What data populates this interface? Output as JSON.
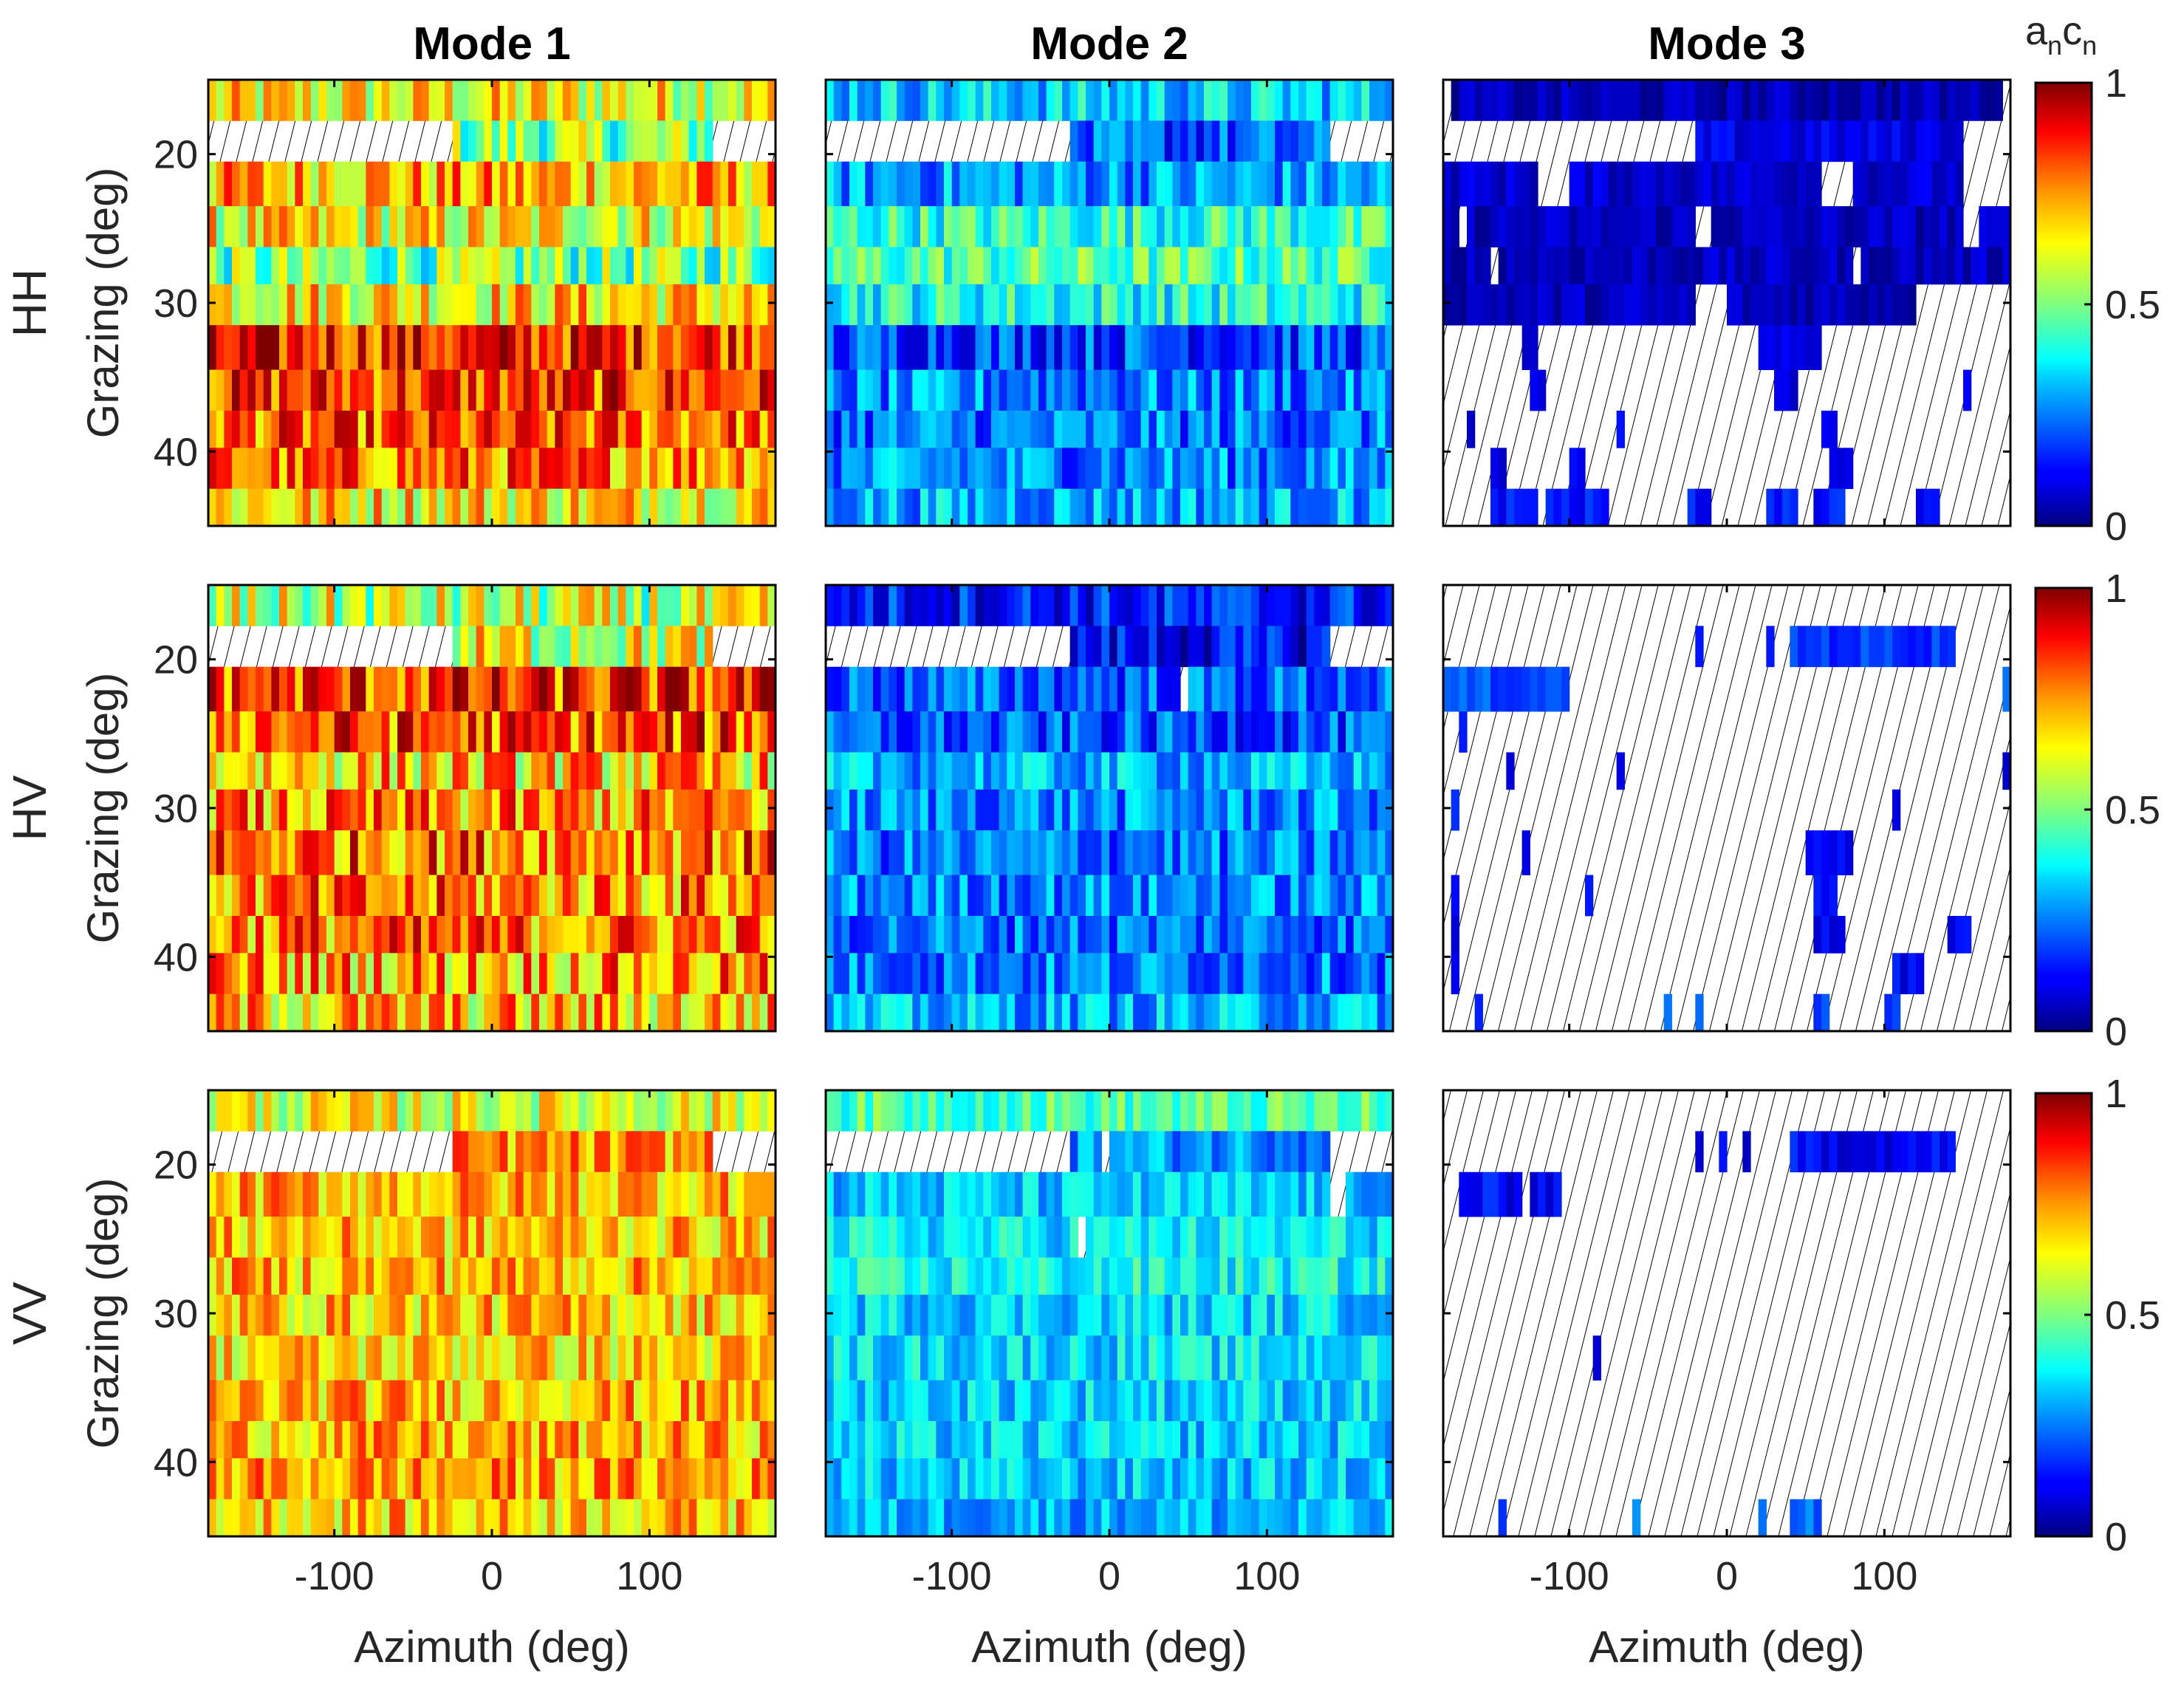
{
  "chart_data": {
    "type": "heatmap",
    "modes": [
      "Mode 1",
      "Mode 2",
      "Mode 3"
    ],
    "polarizations": [
      "HH",
      "HV",
      "VV"
    ],
    "xlabel": "Azimuth (deg)",
    "ylabel": "Grazing (deg)",
    "xlim": [
      -180,
      180
    ],
    "ylim": [
      15,
      45
    ],
    "xticks": [
      -100,
      0,
      100
    ],
    "xtick_labels": [
      "-100",
      "0",
      "100"
    ],
    "yticks": [
      20,
      30,
      40
    ],
    "ytick_labels": [
      "20",
      "30",
      "40"
    ],
    "azimuth_bins": 72,
    "grazing_rows": [
      16.5,
      19.0,
      22.0,
      25.0,
      27.5,
      30.0,
      33.0,
      36.0,
      38.5,
      41.0,
      44.0
    ],
    "missing_value_marker": "hatched",
    "colormap": "jet",
    "colorbar": {
      "title_main": "a",
      "title_sub_a": "n",
      "title_main_b": "c",
      "title_sub_b": "n",
      "ticks": [
        0,
        0.5,
        1
      ],
      "tick_labels": [
        "0",
        "0.5",
        "1"
      ],
      "range": [
        0,
        1
      ]
    },
    "panels": [
      {
        "pol": "HH",
        "mode": "Mode 1",
        "row_means": [
          0.62,
          0.5,
          0.7,
          0.62,
          0.48,
          0.66,
          0.85,
          0.82,
          0.78,
          0.76,
          0.66
        ],
        "row_spread": 0.18,
        "row_missing": [
          [],
          [
            [
              -180,
              -25
            ],
            [
              140,
              180
            ]
          ],
          [],
          [],
          [],
          [],
          [],
          [],
          [],
          [],
          []
        ]
      },
      {
        "pol": "HH",
        "mode": "Mode 2",
        "row_means": [
          0.33,
          0.2,
          0.28,
          0.42,
          0.45,
          0.4,
          0.2,
          0.25,
          0.24,
          0.26,
          0.3
        ],
        "row_spread": 0.13,
        "row_missing": [
          [],
          [
            [
              -180,
              -25
            ],
            [
              140,
              180
            ]
          ],
          [],
          [],
          [],
          [],
          [],
          [],
          [],
          [],
          []
        ]
      },
      {
        "pol": "HH",
        "mode": "Mode 3",
        "row_means": [
          0.05,
          0.1,
          0.08,
          0.06,
          0.06,
          0.06,
          0.08,
          0.1,
          0.1,
          0.12,
          0.14
        ],
        "row_spread": 0.05,
        "row_missing": [
          [
            [
              -180,
              -176
            ],
            [
              175,
              180
            ]
          ],
          [
            [
              -180,
              -22
            ],
            [
              150,
              180
            ]
          ],
          [
            [
              -120,
              -100
            ],
            [
              60,
              80
            ],
            [
              150,
              180
            ]
          ],
          [
            [
              -170,
              -165
            ],
            [
              -20,
              -10
            ],
            [
              150,
              160
            ]
          ],
          [
            [
              -150,
              -145
            ],
            [
              80,
              85
            ]
          ],
          [
            [
              -20,
              0
            ],
            [
              120,
              180
            ]
          ],
          [
            [
              -180,
              -130
            ],
            [
              -120,
              20
            ],
            [
              60,
              180
            ]
          ],
          [
            [
              -180,
              -125
            ],
            [
              -115,
              30
            ],
            [
              45,
              150
            ],
            [
              155,
              180
            ]
          ],
          [
            [
              -180,
              -165
            ],
            [
              -160,
              -70
            ],
            [
              -65,
              60
            ],
            [
              70,
              180
            ]
          ],
          [
            [
              -180,
              -150
            ],
            [
              -140,
              -100
            ],
            [
              -90,
              65
            ],
            [
              80,
              180
            ]
          ],
          [
            [
              -180,
              -150
            ],
            [
              -120,
              -115
            ],
            [
              -75,
              -25
            ],
            [
              -10,
              25
            ],
            [
              45,
              55
            ],
            [
              75,
              120
            ],
            [
              135,
              180
            ]
          ]
        ]
      },
      {
        "pol": "HV",
        "mode": "Mode 1",
        "row_means": [
          0.55,
          0.6,
          0.82,
          0.8,
          0.68,
          0.72,
          0.78,
          0.74,
          0.76,
          0.72,
          0.68
        ],
        "row_spread": 0.2,
        "row_missing": [
          [],
          [
            [
              -180,
              -25
            ],
            [
              140,
              180
            ]
          ],
          [],
          [],
          [],
          [],
          [],
          [],
          [],
          [],
          []
        ]
      },
      {
        "pol": "HV",
        "mode": "Mode 2",
        "row_means": [
          0.15,
          0.12,
          0.22,
          0.2,
          0.3,
          0.26,
          0.24,
          0.26,
          0.24,
          0.25,
          0.3
        ],
        "row_spread": 0.12,
        "row_missing": [
          [],
          [
            [
              -180,
              -25
            ],
            [
              140,
              180
            ]
          ],
          [
            [
              45,
              50
            ]
          ],
          [],
          [],
          [],
          [],
          [],
          [],
          [],
          []
        ]
      },
      {
        "pol": "HV",
        "mode": "Mode 3",
        "row_means": [
          0.1,
          0.18,
          0.2,
          0.12,
          0.12,
          0.14,
          0.14,
          0.12,
          0.12,
          0.12,
          0.2
        ],
        "row_spread": 0.05,
        "row_missing": [
          [
            [
              -180,
              180
            ]
          ],
          [
            [
              -180,
              -20
            ],
            [
              -15,
              25
            ],
            [
              30,
              40
            ],
            [
              145,
              180
            ]
          ],
          [
            [
              -100,
              175
            ]
          ],
          [
            [
              -180,
              -170
            ],
            [
              -165,
              180
            ]
          ],
          [
            [
              -180,
              -140
            ],
            [
              -135,
              -70
            ],
            [
              -65,
              175
            ]
          ],
          [
            [
              -180,
              -175
            ],
            [
              -170,
              105
            ],
            [
              110,
              180
            ]
          ],
          [
            [
              -180,
              -130
            ],
            [
              -125,
              50
            ],
            [
              80,
              180
            ]
          ],
          [
            [
              -180,
              -175
            ],
            [
              -170,
              -90
            ],
            [
              -85,
              55
            ],
            [
              70,
              180
            ]
          ],
          [
            [
              -180,
              -175
            ],
            [
              -170,
              55
            ],
            [
              75,
              140
            ],
            [
              155,
              180
            ]
          ],
          [
            [
              -180,
              -175
            ],
            [
              -170,
              105
            ],
            [
              125,
              180
            ]
          ],
          [
            [
              -180,
              -160
            ],
            [
              -155,
              -40
            ],
            [
              -35,
              -20
            ],
            [
              -15,
              55
            ],
            [
              65,
              100
            ],
            [
              110,
              180
            ]
          ]
        ]
      },
      {
        "pol": "VV",
        "mode": "Mode 1",
        "row_means": [
          0.6,
          0.72,
          0.7,
          0.68,
          0.7,
          0.68,
          0.66,
          0.7,
          0.7,
          0.72,
          0.68
        ],
        "row_spread": 0.14,
        "row_missing": [
          [],
          [
            [
              -180,
              -25
            ],
            [
              140,
              180
            ]
          ],
          [],
          [],
          [],
          [],
          [],
          [],
          [],
          [],
          []
        ]
      },
      {
        "pol": "VV",
        "mode": "Mode 2",
        "row_means": [
          0.45,
          0.28,
          0.32,
          0.36,
          0.38,
          0.34,
          0.35,
          0.34,
          0.33,
          0.32,
          0.3
        ],
        "row_spread": 0.1,
        "row_missing": [
          [],
          [
            [
              -180,
              -25
            ],
            [
              -5,
              0
            ],
            [
              140,
              180
            ]
          ],
          [
            [
              140,
              150
            ]
          ],
          [
            [
              -20,
              -15
            ]
          ],
          [],
          [],
          [],
          [],
          [],
          [],
          []
        ]
      },
      {
        "pol": "VV",
        "mode": "Mode 3",
        "row_means": [
          0.1,
          0.12,
          0.12,
          0.1,
          0.1,
          0.1,
          0.1,
          0.1,
          0.1,
          0.1,
          0.22
        ],
        "row_spread": 0.06,
        "row_missing": [
          [
            [
              -180,
              180
            ]
          ],
          [
            [
              -180,
              -20
            ],
            [
              -15,
              -5
            ],
            [
              0,
              10
            ],
            [
              15,
              40
            ],
            [
              145,
              180
            ]
          ],
          [
            [
              -180,
              -170
            ],
            [
              -130,
              -125
            ],
            [
              -105,
              180
            ]
          ],
          [
            [
              -180,
              180
            ]
          ],
          [
            [
              -180,
              180
            ]
          ],
          [
            [
              -180,
              180
            ]
          ],
          [
            [
              -180,
              -85
            ],
            [
              -80,
              180
            ]
          ],
          [
            [
              -180,
              180
            ]
          ],
          [
            [
              -180,
              180
            ]
          ],
          [
            [
              -180,
              180
            ]
          ],
          [
            [
              -180,
              -145
            ],
            [
              -140,
              -60
            ],
            [
              -55,
              20
            ],
            [
              25,
              40
            ],
            [
              60,
              180
            ]
          ]
        ]
      }
    ]
  }
}
